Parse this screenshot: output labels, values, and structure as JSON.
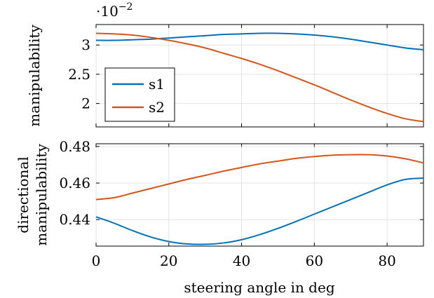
{
  "chart_data": [
    {
      "type": "line",
      "ylabel": "manipulability",
      "y_exponent_text": "·10",
      "y_exponent_power": "−2",
      "ylim": [
        1.6,
        3.35
      ],
      "xlim": [
        0,
        90
      ],
      "yticks": [
        2,
        2.5,
        3
      ],
      "ytick_labels": [
        "2",
        "2.5",
        "3"
      ],
      "xticks": [
        0,
        20,
        40,
        60,
        80
      ],
      "grid": true,
      "legend": "bottom-left",
      "series": [
        {
          "name": "s1",
          "color": "#0072bd",
          "x": [
            0,
            5,
            10,
            15,
            20,
            25,
            30,
            35,
            40,
            45,
            50,
            55,
            60,
            65,
            70,
            75,
            80,
            85,
            90
          ],
          "y": [
            3.08,
            3.08,
            3.09,
            3.1,
            3.12,
            3.14,
            3.16,
            3.18,
            3.19,
            3.2,
            3.2,
            3.19,
            3.17,
            3.14,
            3.1,
            3.05,
            3.0,
            2.95,
            2.92
          ]
        },
        {
          "name": "s2",
          "color": "#d95319",
          "x": [
            0,
            5,
            10,
            15,
            20,
            25,
            30,
            35,
            40,
            45,
            50,
            55,
            60,
            65,
            70,
            75,
            80,
            85,
            90
          ],
          "y": [
            3.2,
            3.19,
            3.17,
            3.13,
            3.08,
            3.02,
            2.95,
            2.86,
            2.77,
            2.67,
            2.56,
            2.44,
            2.32,
            2.19,
            2.06,
            1.94,
            1.83,
            1.74,
            1.69
          ]
        }
      ]
    },
    {
      "type": "line",
      "ylabel": [
        "directional",
        "manipulability"
      ],
      "xlabel": "steering angle in deg",
      "ylim": [
        0.4255,
        0.4815
      ],
      "xlim": [
        0,
        90
      ],
      "yticks": [
        0.44,
        0.46,
        0.48
      ],
      "ytick_labels": [
        "0.44",
        "0.46",
        "0.48"
      ],
      "xticks": [
        0,
        20,
        40,
        60,
        80
      ],
      "xtick_labels": [
        "0",
        "20",
        "40",
        "60",
        "80"
      ],
      "grid": true,
      "series": [
        {
          "name": "s1",
          "color": "#0072bd",
          "x": [
            0,
            5,
            10,
            15,
            20,
            25,
            30,
            35,
            40,
            45,
            50,
            55,
            60,
            65,
            70,
            75,
            80,
            85,
            90
          ],
          "y": [
            0.4415,
            0.438,
            0.434,
            0.4305,
            0.428,
            0.4267,
            0.4265,
            0.4272,
            0.429,
            0.4318,
            0.4352,
            0.439,
            0.443,
            0.447,
            0.451,
            0.455,
            0.459,
            0.462,
            0.4627
          ]
        },
        {
          "name": "s2",
          "color": "#d95319",
          "x": [
            0,
            5,
            10,
            15,
            20,
            25,
            30,
            35,
            40,
            45,
            50,
            55,
            60,
            65,
            70,
            75,
            80,
            85,
            90
          ],
          "y": [
            0.451,
            0.452,
            0.4545,
            0.457,
            0.4595,
            0.462,
            0.4642,
            0.4665,
            0.4685,
            0.4705,
            0.472,
            0.4735,
            0.4745,
            0.4752,
            0.4755,
            0.4755,
            0.4748,
            0.4733,
            0.471
          ]
        }
      ]
    }
  ]
}
